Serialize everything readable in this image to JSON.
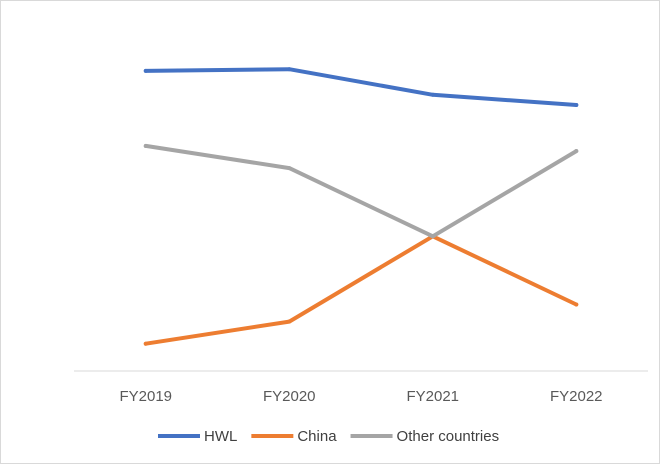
{
  "chart_data": {
    "type": "line",
    "categories": [
      "FY2019",
      "FY2020",
      "FY2021",
      "FY2022"
    ],
    "series": [
      {
        "name": "HWL",
        "color": "#4472c4",
        "values": [
          88,
          88.5,
          81,
          78
        ]
      },
      {
        "name": "China",
        "color": "#ed7d31",
        "values": [
          8,
          14.5,
          39.5,
          19.5
        ]
      },
      {
        "name": "Other countries",
        "color": "#a5a5a5",
        "values": [
          66,
          59.5,
          39.5,
          64.5
        ]
      }
    ],
    "ylim": [
      0,
      100
    ],
    "grid": false,
    "y_axis_labels_shown": false,
    "legend": "bottom"
  }
}
